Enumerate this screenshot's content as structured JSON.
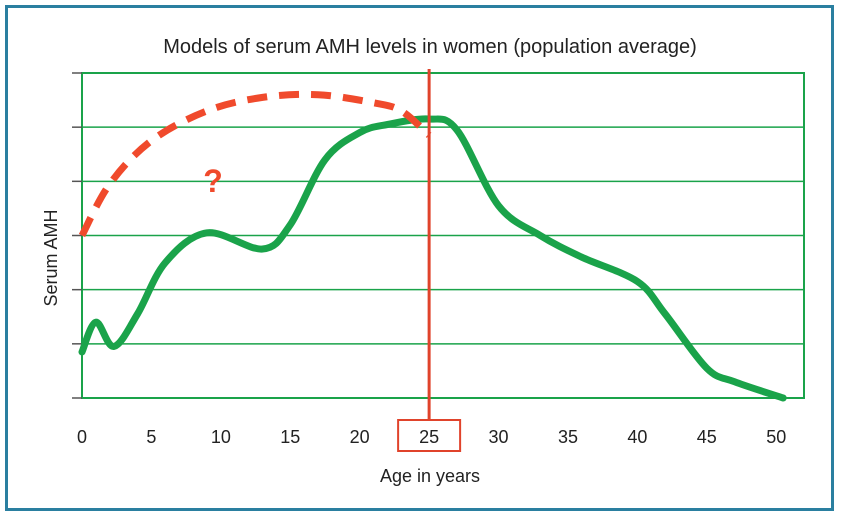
{
  "chart_data": {
    "type": "line",
    "title": "Models of serum AMH levels in women (population average)",
    "xlabel": "Age in years",
    "ylabel": "Serum AMH",
    "xlim": [
      0,
      52
    ],
    "ylim": [
      0,
      6
    ],
    "x_ticks": [
      0,
      5,
      10,
      15,
      20,
      25,
      30,
      35,
      40,
      45,
      50
    ],
    "grid": true,
    "highlight_x": 25,
    "annotation": "?",
    "colors": {
      "main_curve": "#1aa34a",
      "model_curve": "#f04a2c",
      "highlight": "#e0432b",
      "plot_border": "#1aa34a",
      "grid": "#1aa34a",
      "frame": "#2a7fa0"
    },
    "series": [
      {
        "style": "solid",
        "x": [
          0,
          1,
          2.3,
          4,
          6,
          9,
          13,
          15,
          17.5,
          20,
          22,
          25,
          27,
          30,
          33,
          36,
          40,
          42,
          45,
          47,
          50.5
        ],
        "y": [
          0.85,
          1.4,
          0.95,
          1.55,
          2.5,
          3.05,
          2.75,
          3.2,
          4.4,
          4.9,
          5.05,
          5.15,
          4.95,
          3.55,
          3.0,
          2.6,
          2.15,
          1.55,
          0.55,
          0.3,
          0
        ]
      },
      {
        "style": "dashed",
        "x": [
          0,
          2,
          5,
          9,
          13,
          17,
          21,
          23,
          25
        ],
        "y": [
          3.0,
          3.95,
          4.75,
          5.3,
          5.55,
          5.6,
          5.45,
          5.3,
          4.85
        ]
      }
    ]
  }
}
